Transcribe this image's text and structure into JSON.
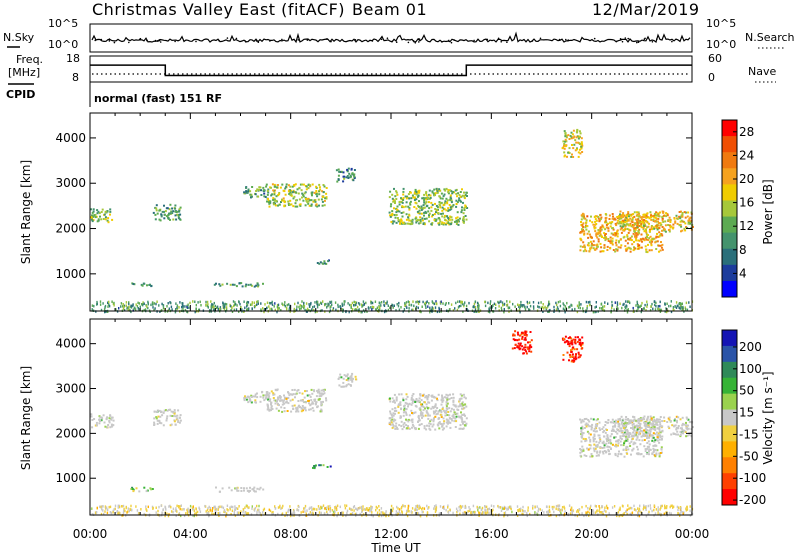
{
  "header": {
    "station_title": "Christmas Valley East (fitACF)",
    "beam_label": "Beam 01",
    "date": "12/Mar/2019"
  },
  "top_panels": {
    "nsky": {
      "label": "N.Sky",
      "ticks_left": [
        "10^5",
        "10^0"
      ],
      "ticks_right": [
        "10^5",
        "10^0"
      ],
      "right_label": "N.Search"
    },
    "freq": {
      "label_line1": "Freq.",
      "label_line2": "[MHz]",
      "ticks_left": [
        "18",
        "8"
      ],
      "ticks_right": [
        "60",
        "0"
      ],
      "right_label": "Nave",
      "freq_steps": [
        {
          "t": 0.0,
          "mhz": 14.5
        },
        {
          "t": 3.0,
          "mhz": 10.5
        },
        {
          "t": 15.0,
          "mhz": 14.5
        },
        {
          "t": 24.0,
          "mhz": 14.5
        }
      ]
    },
    "cpid": {
      "label": "CPID",
      "text": "normal (fast) 151 RF"
    }
  },
  "colors": {
    "power_scale": [
      "#0000ff",
      "#1c3c9c",
      "#2a6f7a",
      "#44936d",
      "#5caa52",
      "#a6c83a",
      "#f0cc00",
      "#f5a21f",
      "#f07a10",
      "#f04f04",
      "#ff0000"
    ],
    "velocity_scale": [
      "#ff0000",
      "#ff4000",
      "#ff8000",
      "#ffb000",
      "#f0d040",
      "#c8c8c8",
      "#9ad24e",
      "#36b336",
      "#2f8a59",
      "#2a54a8",
      "#1414b4"
    ]
  },
  "chart_data": [
    {
      "type": "heatmap",
      "panel": "power",
      "ylabel": "Slant Range [km]",
      "xlabel": "Time UT",
      "x_ticks": [
        "00:00",
        "04:00",
        "08:00",
        "12:00",
        "16:00",
        "20:00",
        "00:00"
      ],
      "y_ticks": [
        "1000",
        "2000",
        "3000",
        "4000"
      ],
      "xlim": [
        0,
        24
      ],
      "ylim": [
        180,
        4550
      ],
      "colorbar_label": "Power [dB]",
      "colorbar_ticks": [
        "4",
        "8",
        "12",
        "16",
        "20",
        "24",
        "28"
      ],
      "colorbar_range": [
        0,
        30
      ],
      "echo_regions": [
        {
          "t": [
            0.0,
            0.9
          ],
          "range": [
            2150,
            2450
          ],
          "level": 0.45
        },
        {
          "t": [
            2.5,
            3.6
          ],
          "range": [
            2200,
            2550
          ],
          "level": 0.35
        },
        {
          "t": [
            6.1,
            7.1
          ],
          "range": [
            2700,
            2950
          ],
          "level": 0.35
        },
        {
          "t": [
            7.0,
            9.4
          ],
          "range": [
            2500,
            3000
          ],
          "level": 0.5
        },
        {
          "t": [
            8.8,
            9.6
          ],
          "range": [
            1240,
            1320
          ],
          "level": 0.3
        },
        {
          "t": [
            1.6,
            2.5
          ],
          "range": [
            740,
            820
          ],
          "level": 0.3
        },
        {
          "t": [
            4.9,
            6.9
          ],
          "range": [
            740,
            820
          ],
          "level": 0.35
        },
        {
          "t": [
            9.8,
            10.6
          ],
          "range": [
            3050,
            3350
          ],
          "level": 0.3
        },
        {
          "t": [
            11.9,
            15.0
          ],
          "range": [
            2100,
            2900
          ],
          "level": 0.45
        },
        {
          "t": [
            18.8,
            19.6
          ],
          "range": [
            3600,
            4200
          ],
          "level": 0.55
        },
        {
          "t": [
            19.5,
            22.8
          ],
          "range": [
            1500,
            2350
          ],
          "level": 0.65
        },
        {
          "t": [
            21.0,
            24.0
          ],
          "range": [
            1950,
            2400
          ],
          "level": 0.6
        },
        {
          "t": [
            0.0,
            24.0
          ],
          "range": [
            180,
            420
          ],
          "level": 0.35
        }
      ]
    },
    {
      "type": "heatmap",
      "panel": "velocity",
      "ylabel": "Slant Range [km]",
      "xlabel": "Time UT",
      "x_ticks": [
        "00:00",
        "04:00",
        "08:00",
        "12:00",
        "16:00",
        "20:00",
        "00:00"
      ],
      "y_ticks": [
        "1000",
        "2000",
        "3000",
        "4000"
      ],
      "xlim": [
        0,
        24
      ],
      "ylim": [
        180,
        4550
      ],
      "colorbar_label": "Velocity [m s⁻¹]",
      "colorbar_ticks": [
        "200",
        "100",
        "50",
        "15",
        "-15",
        "-50",
        "-100",
        "-200"
      ],
      "echo_regions": [
        {
          "t": [
            0.0,
            0.9
          ],
          "range": [
            2150,
            2450
          ],
          "level": 0.5
        },
        {
          "t": [
            2.5,
            3.6
          ],
          "range": [
            2200,
            2550
          ],
          "level": 0.5
        },
        {
          "t": [
            6.1,
            7.1
          ],
          "range": [
            2700,
            2950
          ],
          "level": 0.5
        },
        {
          "t": [
            7.0,
            9.4
          ],
          "range": [
            2500,
            3000
          ],
          "level": 0.5
        },
        {
          "t": [
            8.8,
            9.6
          ],
          "range": [
            1240,
            1320
          ],
          "level": 0.75
        },
        {
          "t": [
            1.6,
            2.5
          ],
          "range": [
            720,
            820
          ],
          "level": 0.6
        },
        {
          "t": [
            4.9,
            6.9
          ],
          "range": [
            720,
            820
          ],
          "level": 0.55
        },
        {
          "t": [
            9.8,
            10.6
          ],
          "range": [
            3050,
            3350
          ],
          "level": 0.5
        },
        {
          "t": [
            11.9,
            15.0
          ],
          "range": [
            2100,
            2900
          ],
          "level": 0.5
        },
        {
          "t": [
            16.8,
            17.6
          ],
          "range": [
            3800,
            4300
          ],
          "level": 0.02
        },
        {
          "t": [
            18.8,
            19.6
          ],
          "range": [
            3600,
            4200
          ],
          "level": 0.05
        },
        {
          "t": [
            19.5,
            22.8
          ],
          "range": [
            1500,
            2350
          ],
          "level": 0.5
        },
        {
          "t": [
            21.0,
            24.0
          ],
          "range": [
            1950,
            2400
          ],
          "level": 0.5
        },
        {
          "t": [
            0.0,
            24.0
          ],
          "range": [
            180,
            420
          ],
          "level": 0.35
        }
      ]
    }
  ]
}
